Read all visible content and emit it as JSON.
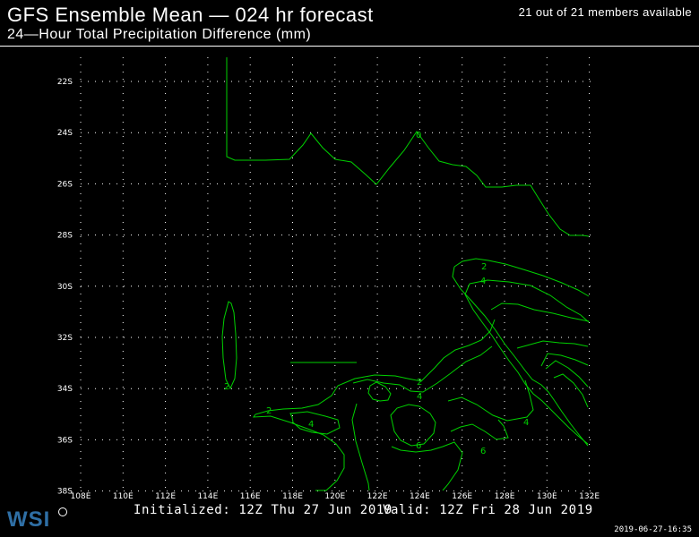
{
  "header": {
    "title": "GFS Ensemble Mean — 024 hr forecast",
    "subtitle": "24—Hour Total Precipitation Difference (mm)",
    "members": "21 out of 21 members available"
  },
  "footer": {
    "initialized": "Initialized: 12Z Thu 27 Jun 2019",
    "valid": "Valid: 12Z Fri 28 Jun 2019",
    "timestamp": "2019-06-27-16:35"
  },
  "branding": {
    "logo_text": "WSI",
    "logo_color": "#2f6fa5"
  },
  "map": {
    "lat_labels": [
      "22S",
      "24S",
      "26S",
      "28S",
      "30S",
      "32S",
      "34S",
      "36S",
      "38S"
    ],
    "lon_labels": [
      "108E",
      "110E",
      "112E",
      "114E",
      "116E",
      "118E",
      "120E",
      "122E",
      "124E",
      "126E",
      "128E",
      "130E",
      "132E"
    ],
    "contour_color": "#00d000",
    "grid_color": "#ffffff",
    "contour_labels": [
      "0",
      "2",
      "4",
      "6"
    ]
  }
}
